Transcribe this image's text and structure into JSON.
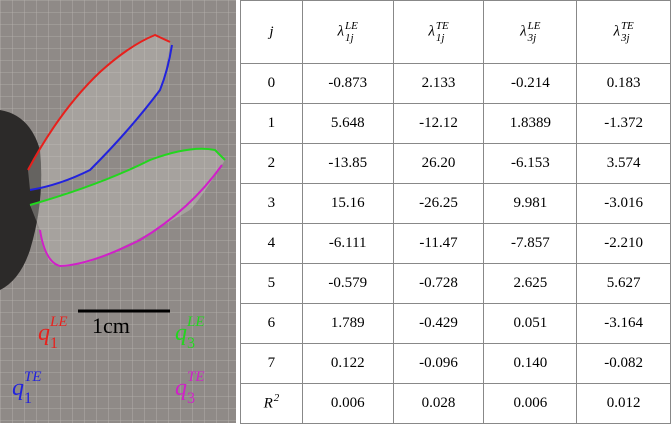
{
  "figure": {
    "scale_bar": "1cm",
    "curve_labels": [
      {
        "symbol": "q",
        "sub": "1",
        "sup": "LE",
        "color": "#e8201c"
      },
      {
        "symbol": "q",
        "sub": "3",
        "sup": "LE",
        "color": "#22d61e"
      },
      {
        "symbol": "q",
        "sub": "1",
        "sup": "TE",
        "color": "#2222dd"
      },
      {
        "symbol": "q",
        "sub": "3",
        "sup": "TE",
        "color": "#d020c8"
      }
    ]
  },
  "table": {
    "header": [
      {
        "symbol": "j"
      },
      {
        "symbol": "λ",
        "sup": "LE",
        "sub": "1j"
      },
      {
        "symbol": "λ",
        "sup": "TE",
        "sub": "1j"
      },
      {
        "symbol": "λ",
        "sup": "LE",
        "sub": "3j"
      },
      {
        "symbol": "λ",
        "sup": "TE",
        "sub": "3j"
      }
    ],
    "rows": [
      [
        {
          "symbol": "0"
        },
        "-0.873",
        "2.133",
        "-0.214",
        "0.183"
      ],
      [
        {
          "symbol": "1"
        },
        "5.648",
        "-12.12",
        "1.8389",
        "-1.372"
      ],
      [
        {
          "symbol": "2"
        },
        "-13.85",
        "26.20",
        "-6.153",
        "3.574"
      ],
      [
        {
          "symbol": "3"
        },
        "15.16",
        "-26.25",
        "9.981",
        "-3.016"
      ],
      [
        {
          "symbol": "4"
        },
        "-6.111",
        "-11.47",
        "-7.857",
        "-2.210"
      ],
      [
        {
          "symbol": "5"
        },
        "-0.579",
        "-0.728",
        "2.625",
        "5.627"
      ],
      [
        {
          "symbol": "6"
        },
        "1.789",
        "-0.429",
        "0.051",
        "-3.164"
      ],
      [
        {
          "symbol": "7"
        },
        "0.122",
        "-0.096",
        "0.140",
        "-0.082"
      ],
      [
        {
          "symbol": "R",
          "sup": "2"
        },
        "0.006",
        "0.028",
        "0.006",
        "0.012"
      ]
    ]
  }
}
